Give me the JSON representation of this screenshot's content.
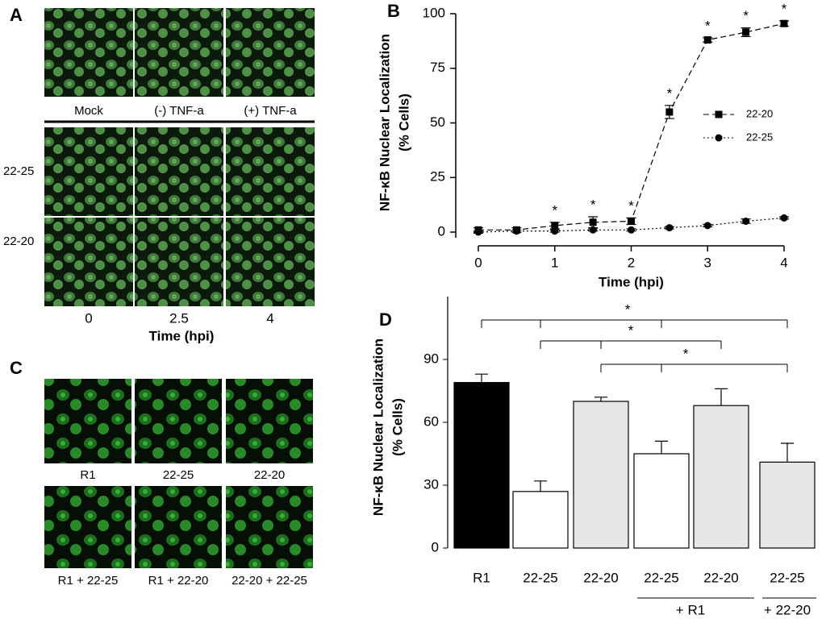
{
  "panel_labels": [
    "A",
    "B",
    "C",
    "D"
  ],
  "panel_a": {
    "column_labels": [
      "Mock",
      "(-) TNF-a",
      "(+) TNF-a"
    ],
    "row_labels": [
      "22-25",
      "22-20"
    ],
    "time_labels": [
      "0",
      "2.5",
      "4"
    ],
    "time_title": "Time (hpi)"
  },
  "panel_c": {
    "labels": [
      "R1",
      "22-25",
      "22-20",
      "R1 + 22-25",
      "R1 + 22-20",
      "22-20 + 22-25"
    ]
  },
  "chart_data": [
    {
      "type": "line",
      "xlabel": "Time (hpi)",
      "ylabel": [
        "NF-κB Nuclear Localization",
        "(% Cells)"
      ],
      "x": [
        0,
        0.5,
        1,
        1.5,
        2,
        2.5,
        3,
        3.5,
        4
      ],
      "series": [
        {
          "name": "22-20",
          "color": "#000000",
          "marker": "square",
          "dash": "7,4",
          "values": [
            1,
            1,
            3,
            4.5,
            5,
            55,
            88,
            91.5,
            95.5
          ],
          "errors": [
            1,
            1,
            1.5,
            2.5,
            1.5,
            3,
            1,
            2,
            1.2
          ]
        },
        {
          "name": "22-25",
          "color": "#000000",
          "marker": "circle",
          "dash": "2,3",
          "values": [
            0,
            0.5,
            0.5,
            1,
            1,
            2,
            3,
            5,
            6.5
          ],
          "errors": [
            0.5,
            0.5,
            0.5,
            0.5,
            0.5,
            0.5,
            0.5,
            1,
            0.5
          ]
        }
      ],
      "significance": [
        null,
        null,
        "*",
        "*",
        "*",
        "*",
        "*",
        "*",
        "*"
      ],
      "xlim": [
        0,
        4
      ],
      "ylim": [
        0,
        100
      ],
      "xticks": [
        0,
        1,
        2,
        3,
        4
      ],
      "yticks": [
        0,
        25,
        50,
        75,
        100
      ],
      "legend": "right"
    },
    {
      "type": "bar",
      "ylabel": [
        "NF-κB Nuclear Localization",
        "(% Cells)"
      ],
      "categories": [
        "R1",
        "22-25",
        "22-20",
        "22-25",
        "22-20",
        "22-25"
      ],
      "values": [
        79,
        27,
        70,
        45,
        68,
        41
      ],
      "errors": [
        4,
        5,
        2,
        6,
        8,
        9
      ],
      "colors": [
        "#000000",
        "#ffffff",
        "#e6e6e6",
        "#ffffff",
        "#e6e6e6",
        "#e6e6e6"
      ],
      "groups": [
        "+ R1",
        "+ 22-20"
      ],
      "brackets": [
        {
          "label": "*"
        },
        {
          "label": "*"
        },
        {
          "label": "*"
        }
      ],
      "ylim": [
        0,
        120
      ],
      "yticks": [
        0,
        30,
        60,
        90
      ]
    }
  ]
}
